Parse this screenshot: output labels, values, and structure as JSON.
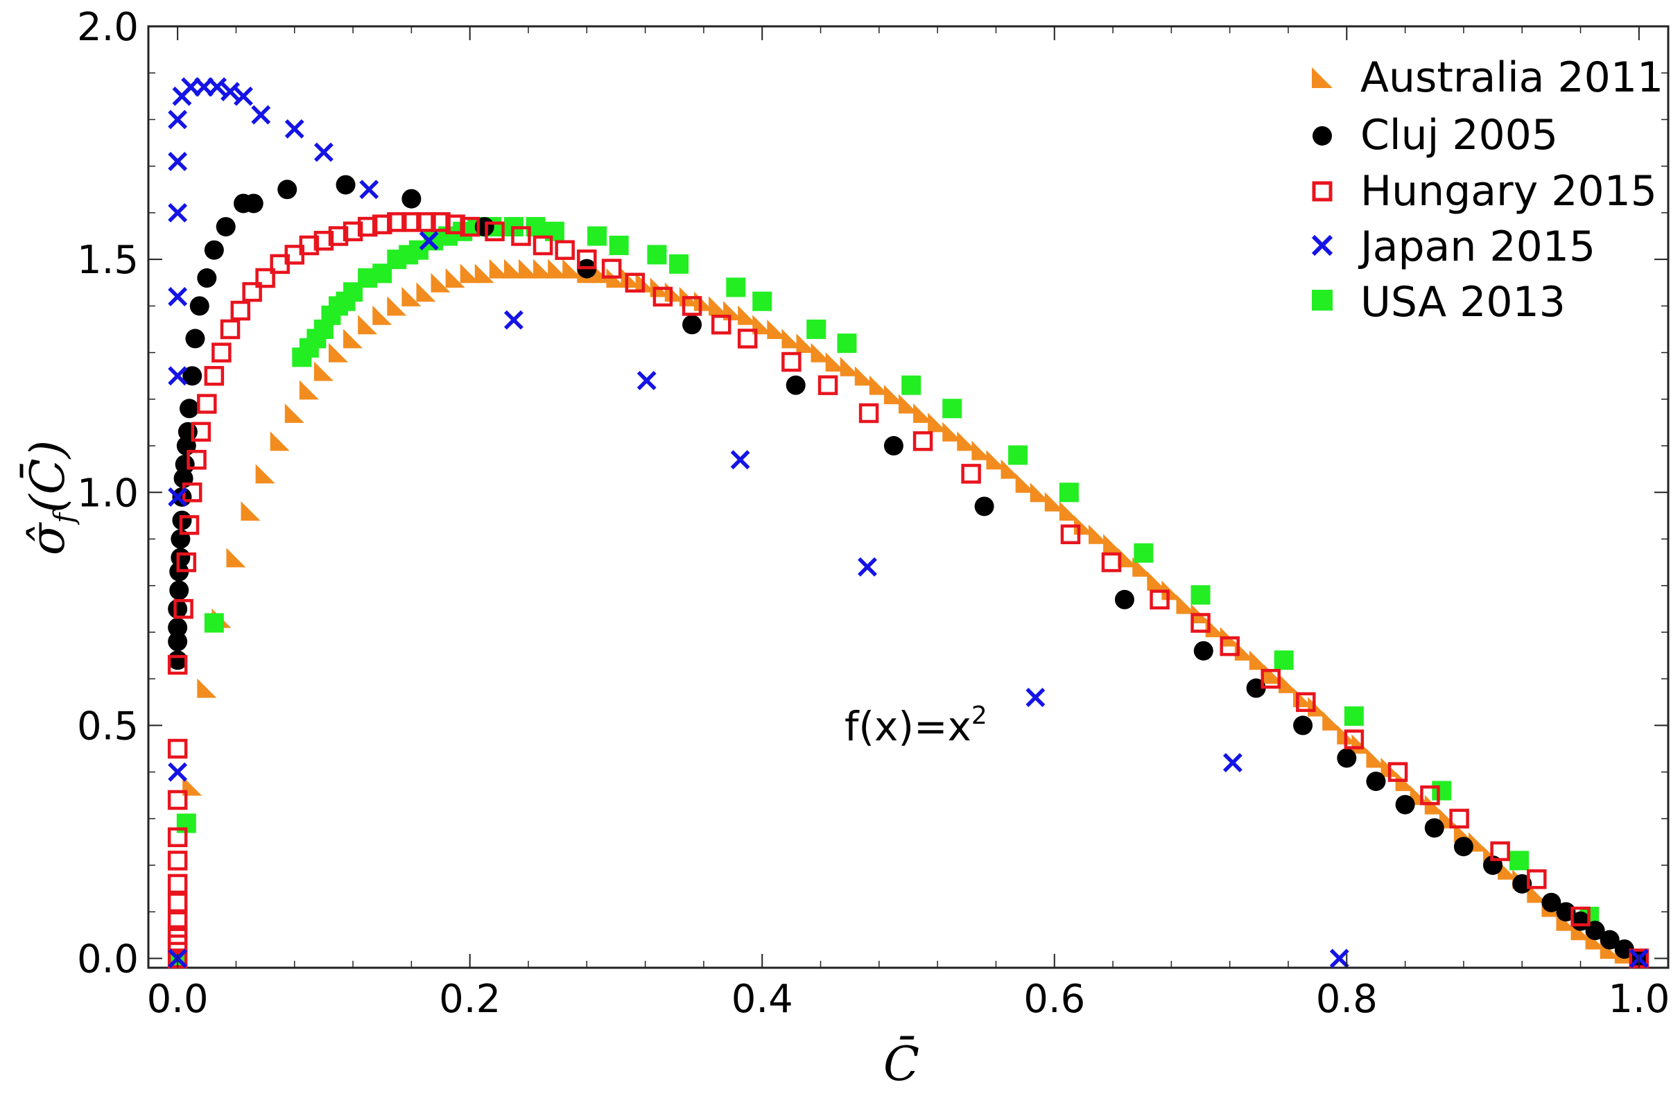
{
  "chart_data": {
    "type": "scatter",
    "title": "",
    "xlabel": "C̄",
    "ylabel": "σ̂_f(C̄)",
    "ylabel_main": "σ̂",
    "ylabel_sub": "f",
    "ylabel_arg": "(C̄)",
    "annotation": {
      "text": "f(x)=x",
      "superscript": "2",
      "x": 0.5,
      "y": 0.5
    },
    "xlim": [
      -0.02,
      1.02
    ],
    "ylim": [
      -0.02,
      2.0
    ],
    "xticks": [
      0.0,
      0.2,
      0.4,
      0.6,
      0.8,
      1.0
    ],
    "xtick_labels": [
      "0.0",
      "0.2",
      "0.4",
      "0.6",
      "0.8",
      "1.0"
    ],
    "yticks": [
      0.0,
      0.5,
      1.0,
      1.5,
      2.0
    ],
    "ytick_labels": [
      "0.0",
      "0.5",
      "1.0",
      "1.5",
      "2.0"
    ],
    "legend_position": "top-right",
    "series": [
      {
        "name": "Australia 2011",
        "marker": "triangle",
        "color": "#f28c1e",
        "x": [
          0.01,
          0.02,
          0.03,
          0.04,
          0.05,
          0.06,
          0.07,
          0.08,
          0.09,
          0.1,
          0.11,
          0.12,
          0.13,
          0.14,
          0.15,
          0.16,
          0.17,
          0.18,
          0.19,
          0.2,
          0.21,
          0.22,
          0.23,
          0.24,
          0.25,
          0.26,
          0.27,
          0.28,
          0.29,
          0.3,
          0.31,
          0.32,
          0.33,
          0.34,
          0.35,
          0.36,
          0.37,
          0.38,
          0.39,
          0.4,
          0.41,
          0.42,
          0.43,
          0.44,
          0.45,
          0.46,
          0.47,
          0.48,
          0.49,
          0.5,
          0.51,
          0.52,
          0.53,
          0.54,
          0.55,
          0.56,
          0.57,
          0.58,
          0.59,
          0.6,
          0.61,
          0.62,
          0.63,
          0.64,
          0.65,
          0.66,
          0.67,
          0.68,
          0.69,
          0.7,
          0.71,
          0.72,
          0.73,
          0.74,
          0.75,
          0.76,
          0.77,
          0.78,
          0.79,
          0.8,
          0.81,
          0.82,
          0.83,
          0.84,
          0.85,
          0.86,
          0.87,
          0.88,
          0.89,
          0.9,
          0.91,
          0.92,
          0.93,
          0.94,
          0.95,
          0.96,
          0.97,
          0.98,
          0.99,
          1.0
        ],
        "y": [
          0.37,
          0.58,
          0.73,
          0.86,
          0.96,
          1.04,
          1.11,
          1.17,
          1.22,
          1.26,
          1.3,
          1.33,
          1.36,
          1.38,
          1.4,
          1.42,
          1.43,
          1.45,
          1.46,
          1.47,
          1.47,
          1.48,
          1.48,
          1.48,
          1.48,
          1.48,
          1.48,
          1.47,
          1.47,
          1.46,
          1.46,
          1.45,
          1.44,
          1.43,
          1.42,
          1.41,
          1.4,
          1.39,
          1.38,
          1.36,
          1.35,
          1.33,
          1.32,
          1.3,
          1.28,
          1.27,
          1.25,
          1.23,
          1.21,
          1.19,
          1.17,
          1.15,
          1.13,
          1.11,
          1.09,
          1.07,
          1.05,
          1.02,
          1.0,
          0.98,
          0.96,
          0.93,
          0.91,
          0.89,
          0.86,
          0.84,
          0.81,
          0.79,
          0.76,
          0.74,
          0.71,
          0.69,
          0.66,
          0.64,
          0.61,
          0.59,
          0.56,
          0.54,
          0.51,
          0.48,
          0.46,
          0.43,
          0.41,
          0.38,
          0.35,
          0.33,
          0.3,
          0.27,
          0.25,
          0.22,
          0.19,
          0.17,
          0.14,
          0.11,
          0.08,
          0.06,
          0.04,
          0.02,
          0.01,
          0.0
        ]
      },
      {
        "name": "Cluj 2005",
        "marker": "circle",
        "color": "#000000",
        "x": [
          0.0,
          0.0,
          0.0,
          0.0,
          0.001,
          0.001,
          0.002,
          0.002,
          0.003,
          0.003,
          0.004,
          0.005,
          0.006,
          0.007,
          0.008,
          0.01,
          0.012,
          0.015,
          0.02,
          0.025,
          0.033,
          0.045,
          0.052,
          0.075,
          0.115,
          0.16,
          0.21,
          0.28,
          0.352,
          0.423,
          0.49,
          0.552,
          0.648,
          0.702,
          0.738,
          0.77,
          0.8,
          0.82,
          0.84,
          0.86,
          0.88,
          0.9,
          0.92,
          0.94,
          0.95,
          0.96,
          0.97,
          0.98,
          0.99,
          1.0
        ],
        "y": [
          0.64,
          0.68,
          0.71,
          0.75,
          0.79,
          0.83,
          0.86,
          0.9,
          0.94,
          0.99,
          1.03,
          1.06,
          1.1,
          1.13,
          1.18,
          1.25,
          1.33,
          1.4,
          1.46,
          1.52,
          1.57,
          1.62,
          1.62,
          1.65,
          1.66,
          1.63,
          1.57,
          1.48,
          1.36,
          1.23,
          1.1,
          0.97,
          0.77,
          0.66,
          0.58,
          0.5,
          0.43,
          0.38,
          0.33,
          0.28,
          0.24,
          0.2,
          0.16,
          0.12,
          0.1,
          0.08,
          0.06,
          0.04,
          0.02,
          0.0
        ]
      },
      {
        "name": "Hungary 2015",
        "marker": "square-open",
        "color": "#e8141e",
        "x": [
          0.0,
          0.0,
          0.0,
          0.0,
          0.0,
          0.0,
          0.0,
          0.0,
          0.0,
          0.0,
          0.0,
          0.004,
          0.006,
          0.008,
          0.01,
          0.013,
          0.016,
          0.02,
          0.025,
          0.03,
          0.036,
          0.043,
          0.051,
          0.06,
          0.07,
          0.08,
          0.09,
          0.1,
          0.11,
          0.12,
          0.13,
          0.14,
          0.15,
          0.16,
          0.17,
          0.18,
          0.19,
          0.2,
          0.217,
          0.235,
          0.25,
          0.265,
          0.28,
          0.297,
          0.313,
          0.332,
          0.352,
          0.372,
          0.39,
          0.42,
          0.445,
          0.473,
          0.51,
          0.543,
          0.611,
          0.639,
          0.672,
          0.7,
          0.72,
          0.748,
          0.772,
          0.805,
          0.835,
          0.857,
          0.877,
          0.905,
          0.93,
          0.96,
          1.0
        ],
        "y": [
          0.0,
          0.03,
          0.05,
          0.08,
          0.12,
          0.16,
          0.21,
          0.26,
          0.34,
          0.45,
          0.63,
          0.75,
          0.85,
          0.93,
          1.0,
          1.07,
          1.13,
          1.19,
          1.25,
          1.3,
          1.35,
          1.39,
          1.43,
          1.46,
          1.49,
          1.51,
          1.53,
          1.54,
          1.55,
          1.56,
          1.57,
          1.575,
          1.58,
          1.58,
          1.58,
          1.58,
          1.575,
          1.57,
          1.56,
          1.55,
          1.53,
          1.52,
          1.5,
          1.48,
          1.45,
          1.42,
          1.4,
          1.36,
          1.33,
          1.28,
          1.23,
          1.17,
          1.11,
          1.04,
          0.91,
          0.85,
          0.77,
          0.72,
          0.67,
          0.6,
          0.55,
          0.47,
          0.4,
          0.35,
          0.3,
          0.23,
          0.17,
          0.09,
          0.0
        ]
      },
      {
        "name": "Japan 2015",
        "marker": "cross",
        "color": "#1414e6",
        "x": [
          0.0,
          0.0,
          0.0,
          0.0,
          0.0,
          0.0,
          0.0,
          0.0,
          0.003,
          0.009,
          0.018,
          0.027,
          0.036,
          0.045,
          0.057,
          0.08,
          0.1,
          0.131,
          0.172,
          0.23,
          0.321,
          0.385,
          0.472,
          0.587,
          0.722,
          0.795,
          1.0
        ],
        "y": [
          0.0,
          0.4,
          0.99,
          1.25,
          1.42,
          1.6,
          1.71,
          1.8,
          1.85,
          1.87,
          1.87,
          1.87,
          1.86,
          1.85,
          1.81,
          1.78,
          1.73,
          1.65,
          1.54,
          1.37,
          1.24,
          1.07,
          0.84,
          0.56,
          0.42,
          0.0,
          0.0
        ]
      },
      {
        "name": "USA 2013",
        "marker": "square",
        "color": "#22ee22",
        "x": [
          0.0,
          0.006,
          0.025,
          0.085,
          0.09,
          0.095,
          0.1,
          0.105,
          0.11,
          0.115,
          0.12,
          0.13,
          0.14,
          0.15,
          0.158,
          0.165,
          0.175,
          0.185,
          0.195,
          0.205,
          0.215,
          0.23,
          0.245,
          0.258,
          0.287,
          0.302,
          0.328,
          0.343,
          0.382,
          0.4,
          0.437,
          0.458,
          0.502,
          0.53,
          0.575,
          0.61,
          0.661,
          0.7,
          0.757,
          0.805,
          0.865,
          0.918,
          0.966,
          1.0
        ],
        "y": [
          0.0,
          0.29,
          0.72,
          1.29,
          1.31,
          1.33,
          1.35,
          1.38,
          1.4,
          1.41,
          1.43,
          1.46,
          1.47,
          1.5,
          1.51,
          1.52,
          1.54,
          1.55,
          1.56,
          1.57,
          1.57,
          1.57,
          1.57,
          1.56,
          1.55,
          1.53,
          1.51,
          1.49,
          1.44,
          1.41,
          1.35,
          1.32,
          1.23,
          1.18,
          1.08,
          1.0,
          0.87,
          0.78,
          0.64,
          0.52,
          0.36,
          0.21,
          0.09,
          0.0
        ]
      }
    ]
  }
}
